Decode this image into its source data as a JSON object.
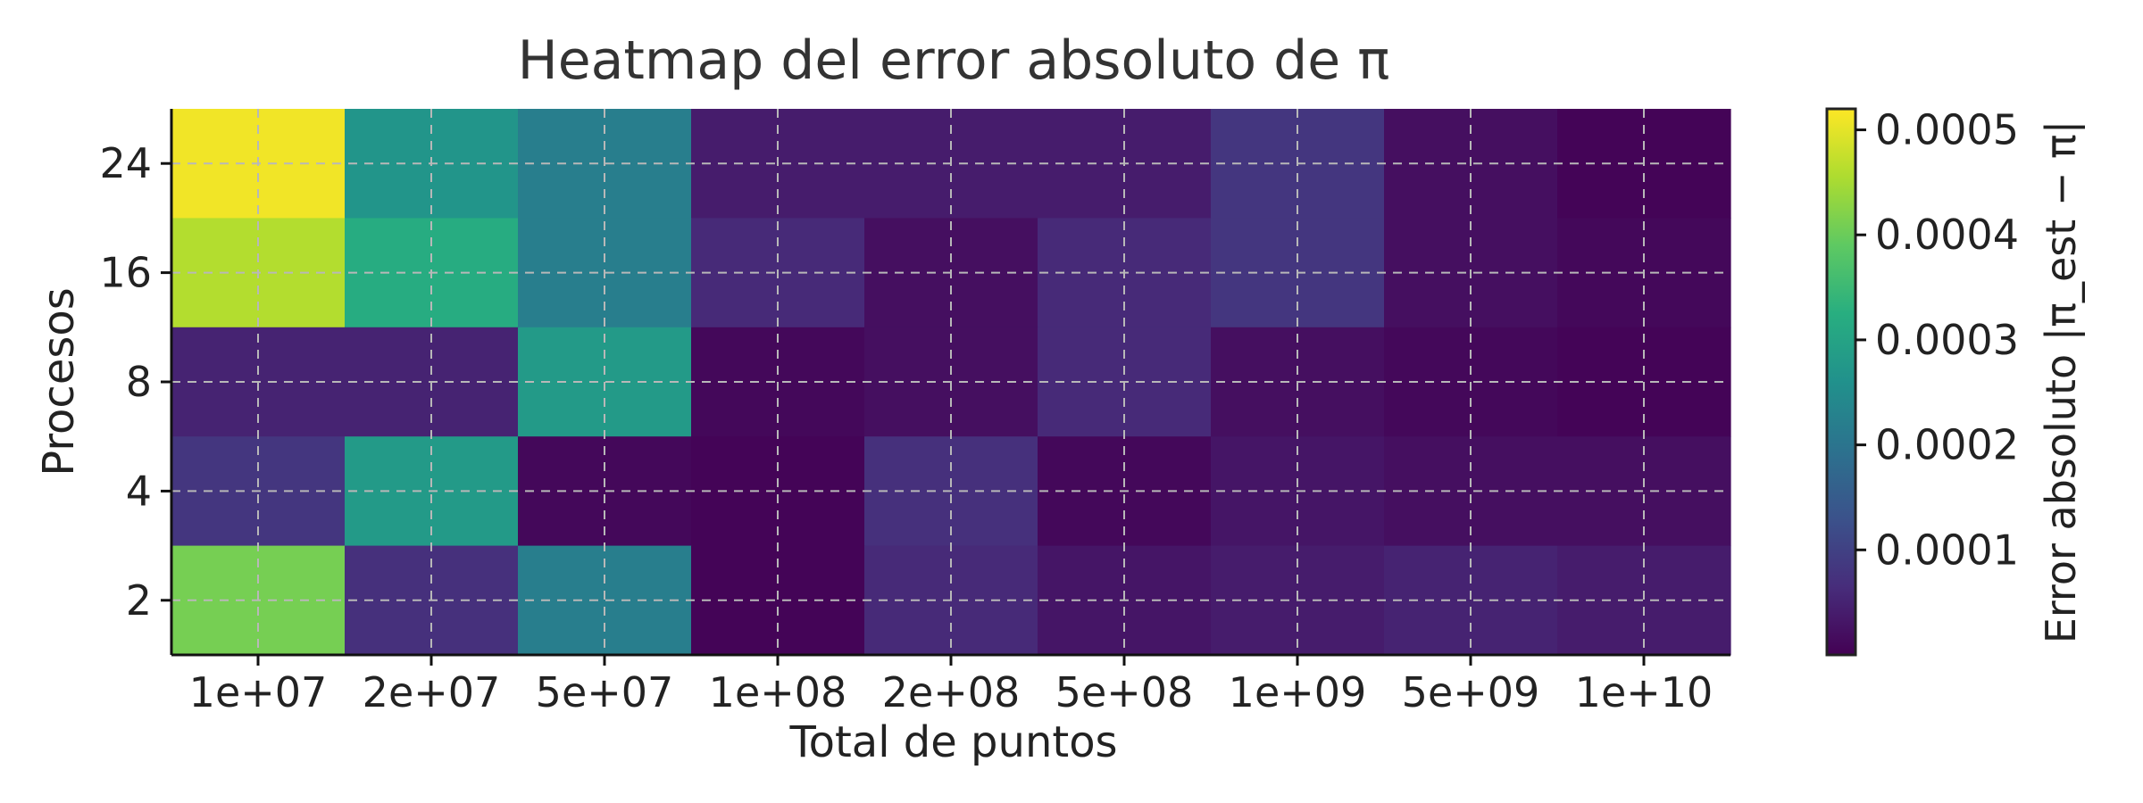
{
  "chart_data": {
    "type": "heatmap",
    "title": "Heatmap del error absoluto de π",
    "xlabel": "Total de puntos",
    "ylabel": "Procesos",
    "colorbar_label": "Error absoluto |π_est − π|",
    "x_categories": [
      "1e+07",
      "2e+07",
      "5e+07",
      "1e+08",
      "2e+08",
      "5e+08",
      "1e+09",
      "5e+09",
      "1e+10"
    ],
    "y_categories": [
      "24",
      "16",
      "8",
      "4",
      "2"
    ],
    "values": [
      [
        0.00051,
        0.00027,
        0.00022,
        4e-05,
        4e-05,
        4e-05,
        8e-05,
        2e-05,
        5e-06
      ],
      [
        0.00046,
        0.00032,
        0.00022,
        6e-05,
        2e-05,
        6e-05,
        8e-05,
        2e-05,
        1e-05
      ],
      [
        5e-05,
        5e-05,
        0.00028,
        1e-05,
        2e-05,
        6e-05,
        2e-05,
        1e-05,
        5e-06
      ],
      [
        8e-05,
        0.00028,
        1e-05,
        5e-06,
        7e-05,
        1e-05,
        3e-05,
        2e-05,
        2e-05
      ],
      [
        0.00041,
        7e-05,
        0.00022,
        5e-06,
        6e-05,
        3e-05,
        4e-05,
        5e-05,
        4e-05
      ]
    ],
    "zlim": [
      0.0,
      0.00052
    ],
    "colorbar_ticks": [
      0.0001,
      0.0002,
      0.0003,
      0.0004,
      0.0005
    ],
    "colorbar_tick_labels": [
      "0.0001",
      "0.0002",
      "0.0003",
      "0.0004",
      "0.0005"
    ],
    "colormap": "viridis",
    "grid": true,
    "grid_style": "dashed"
  }
}
